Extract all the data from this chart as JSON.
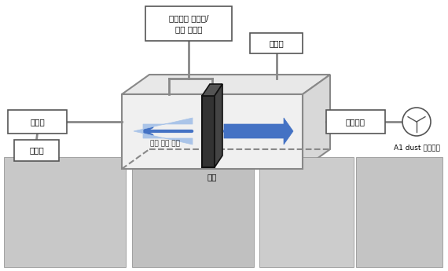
{
  "bg_color": "#ffffff",
  "box_color": "#888888",
  "box_face": "#f5f5f5",
  "label_송풍기": "송풍기",
  "label_인버터": "인버터",
  "label_희석박스": "희석박스",
  "label_dust": "A1 dust 분사장치",
  "label_미세먼지": "미세먼지 측정기/\n차압 측정기",
  "label_유속계": "유속계",
  "label_필터": "필터",
  "label_공기흐름": "공기 흐름 방향",
  "filter_color": "#222222",
  "arrow_color": "#4472C4",
  "line_color": "#888888",
  "box_edge": "#555555"
}
